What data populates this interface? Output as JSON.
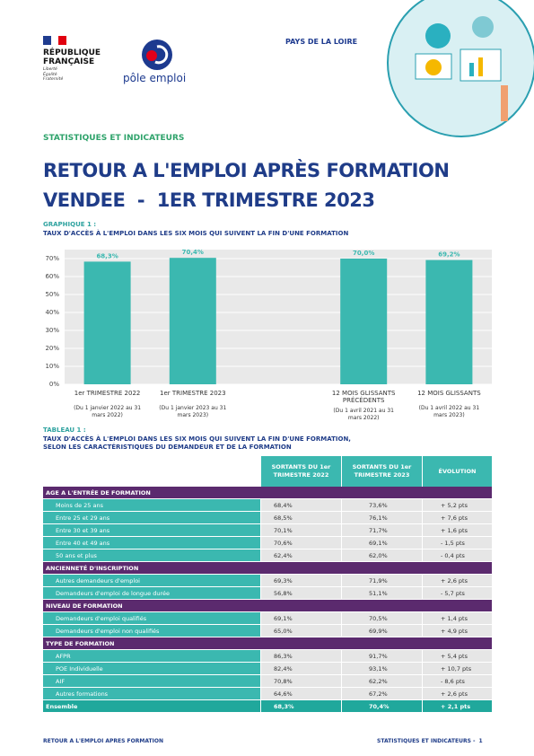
{
  "header": {
    "republique": [
      "RÉPUBLIQUE",
      "FRANÇAISE"
    ],
    "motto": [
      "Liberté",
      "Égalité",
      "Fraternité"
    ],
    "brand": "pôle emploi",
    "region": "PAYS DE LA LOIRE",
    "section": "STATISTIQUES ET INDICATEURS"
  },
  "title": [
    "RETOUR A L'EMPLOI APRÈS FORMATION",
    "VENDEE  -  1ER TRIMESTRE 2023"
  ],
  "chart_data": {
    "type": "bar",
    "label": "GRAPHIQUE 1 :",
    "title": "TAUX D'ACCÈS À L'EMPLOI DANS LES SIX MOIS QUI SUIVENT LA FIN D'UNE FORMATION",
    "categories": [
      "1er TRIMESTRE 2022",
      "1er TRIMESTRE 2023",
      null,
      "12 MOIS GLISSANTS PRÉCÉDENTS",
      "12 MOIS GLISSANTS"
    ],
    "periods": [
      "(Du 1 janvier 2022 au 31 mars 2022)",
      "(Du 1 janvier 2023 au 31 mars 2023)",
      null,
      "(Du 1 avril 2021 au 31 mars 2022)",
      "(Du 1 avril 2022 au 31 mars 2023)"
    ],
    "values": [
      68.3,
      70.4,
      null,
      70.0,
      69.2
    ],
    "value_labels": [
      "68,3%",
      "70,4%",
      null,
      "70,0%",
      "69,2%"
    ],
    "color": "#3bb8b0",
    "ylim": [
      0,
      75
    ],
    "yticks": [
      {
        "value": 0,
        "label": "0%"
      },
      {
        "value": 10,
        "label": "10%"
      },
      {
        "value": 20,
        "label": "20%"
      },
      {
        "value": 30,
        "label": "30%"
      },
      {
        "value": 40,
        "label": "40%"
      },
      {
        "value": 50,
        "label": "50%"
      },
      {
        "value": 60,
        "label": "60%"
      },
      {
        "value": 70,
        "label": "70%"
      }
    ],
    "grid": true
  },
  "table": {
    "label": "TABLEAU 1 :",
    "title": [
      "TAUX D'ACCÈS À L'EMPLOI DANS LES SIX MOIS QUI SUIVENT LA FIN D'UNE FORMATION,",
      "SELON LES CARACTÉRISTIQUES DU DEMANDEUR ET DE LA FORMATION"
    ],
    "columns": [
      "SORTANTS DU 1er TRIMESTRE 2022",
      "SORTANTS DU 1er TRIMESTRE 2023",
      "ÉVOLUTION"
    ],
    "groups": [
      {
        "name": "AGE A L'ENTRÉE DE FORMATION",
        "rows": [
          [
            "Moins de 25 ans",
            "68,4%",
            "73,6%",
            "+ 5,2 pts"
          ],
          [
            "Entre 25 et 29 ans",
            "68,5%",
            "76,1%",
            "+ 7,6 pts"
          ],
          [
            "Entre 30 et 39 ans",
            "70,1%",
            "71,7%",
            "+ 1,6 pts"
          ],
          [
            "Entre 40 et 49 ans",
            "70,6%",
            "69,1%",
            "- 1,5 pts"
          ],
          [
            "50 ans et plus",
            "62,4%",
            "62,0%",
            "- 0,4 pts"
          ]
        ]
      },
      {
        "name": "ANCIENNETÉ D'INSCRIPTION",
        "rows": [
          [
            "Autres demandeurs d'emploi",
            "69,3%",
            "71,9%",
            "+ 2,6 pts"
          ],
          [
            "Demandeurs d'emploi de longue durée",
            "56,8%",
            "51,1%",
            "- 5,7 pts"
          ]
        ]
      },
      {
        "name": "NIVEAU DE FORMATION",
        "rows": [
          [
            "Demandeurs d'emploi qualifiés",
            "69,1%",
            "70,5%",
            "+ 1,4 pts"
          ],
          [
            "Demandeurs d'emploi non qualifiés",
            "65,0%",
            "69,9%",
            "+ 4,9 pts"
          ]
        ]
      },
      {
        "name": "TYPE DE FORMATION",
        "rows": [
          [
            "AFPR",
            "86,3%",
            "91,7%",
            "+ 5,4 pts"
          ],
          [
            "POE Individuelle",
            "82,4%",
            "93,1%",
            "+ 10,7 pts"
          ],
          [
            "AIF",
            "70,8%",
            "62,2%",
            "- 8,6 pts"
          ],
          [
            "Autres formations",
            "64,6%",
            "67,2%",
            "+ 2,6 pts"
          ]
        ]
      }
    ],
    "total": [
      "Ensemble",
      "68,3%",
      "70,4%",
      "+ 2,1 pts"
    ]
  },
  "footer": {
    "left": "RETOUR A L'EMPLOI APRES FORMATION",
    "right": "STATISTIQUES ET INDICATEURS -",
    "page": "1"
  }
}
